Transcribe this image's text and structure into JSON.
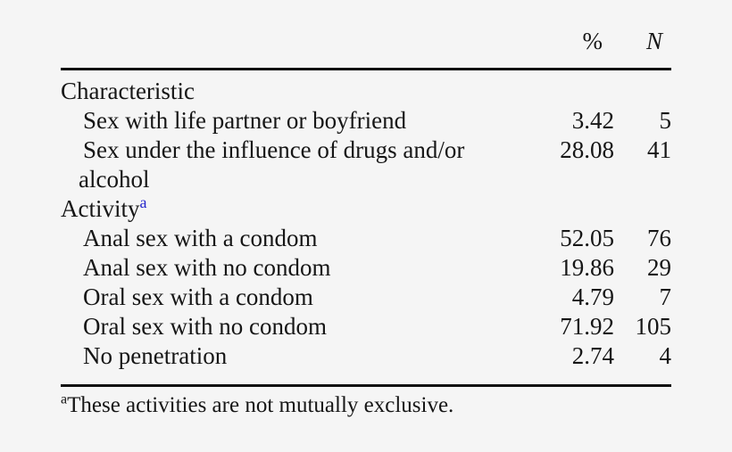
{
  "page": {
    "background_color": "#f5f5f5",
    "text_color": "#161616",
    "rule_color": "#101010",
    "superscript_link_color": "#2323cb"
  },
  "table": {
    "columns": {
      "percent": "%",
      "n": "N"
    },
    "rows": [
      {
        "label": "Characteristic",
        "indent": 0,
        "pct": "",
        "n": ""
      },
      {
        "label": "Sex with life partner or boyfriend",
        "indent": 1,
        "pct": "3.42",
        "n": "5"
      },
      {
        "label": "Sex under the influence of drugs and/or",
        "label2": "alcohol",
        "indent": 1,
        "pct": "28.08",
        "n": "41"
      },
      {
        "label": "Activity",
        "sup": "a",
        "indent": 0,
        "pct": "",
        "n": ""
      },
      {
        "label": "Anal sex with a condom",
        "indent": 1,
        "pct": "52.05",
        "n": "76"
      },
      {
        "label": "Anal sex with no condom",
        "indent": 1,
        "pct": "19.86",
        "n": "29"
      },
      {
        "label": "Oral sex with a condom",
        "indent": 1,
        "pct": "4.79",
        "n": "7"
      },
      {
        "label": "Oral sex with no condom",
        "indent": 1,
        "pct": "71.92",
        "n": "105"
      },
      {
        "label": "No penetration",
        "indent": 1,
        "pct": "2.74",
        "n": "4"
      }
    ]
  },
  "footnote": {
    "marker": "a",
    "text": "These activities are not mutually exclusive."
  },
  "chart_data": {
    "type": "table",
    "columns": [
      "Characteristic",
      "%",
      "N"
    ],
    "sections": [
      {
        "section": "Characteristic",
        "rows": [
          {
            "label": "Sex with life partner or boyfriend",
            "percent": 3.42,
            "n": 5
          },
          {
            "label": "Sex under the influence of drugs and/or alcohol",
            "percent": 28.08,
            "n": 41
          }
        ]
      },
      {
        "section": "Activity",
        "section_footnote_marker": "a",
        "rows": [
          {
            "label": "Anal sex with a condom",
            "percent": 52.05,
            "n": 76
          },
          {
            "label": "Anal sex with no condom",
            "percent": 19.86,
            "n": 29
          },
          {
            "label": "Oral sex with a condom",
            "percent": 4.79,
            "n": 7
          },
          {
            "label": "Oral sex with no condom",
            "percent": 71.92,
            "n": 105
          },
          {
            "label": "No penetration",
            "percent": 2.74,
            "n": 4
          }
        ]
      }
    ],
    "footnote": "aThese activities are not mutually exclusive."
  }
}
